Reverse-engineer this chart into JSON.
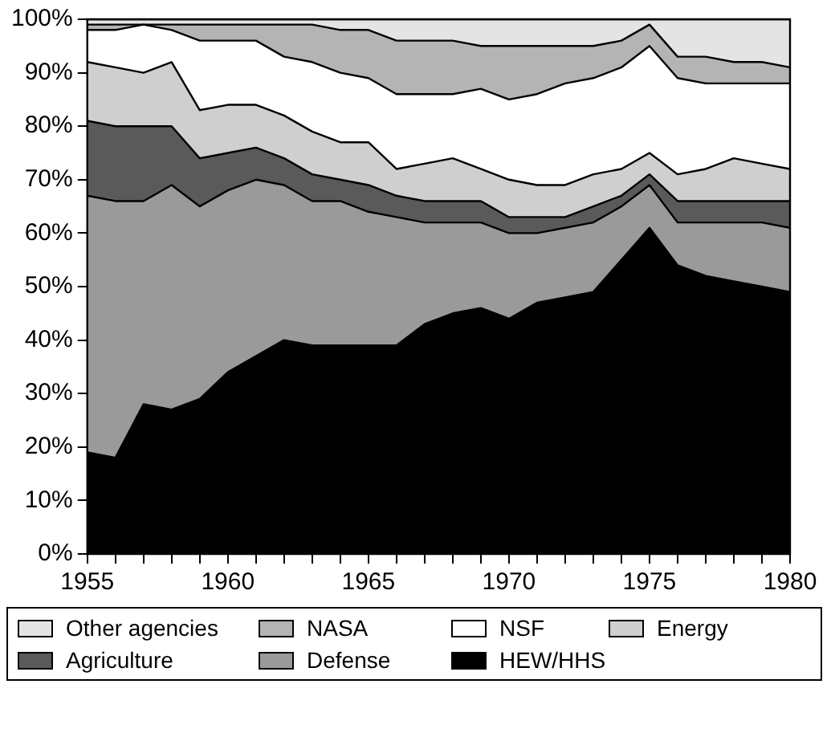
{
  "chart_data": {
    "type": "area",
    "stacked": true,
    "legend": "bottom",
    "marker": "none",
    "x": [
      1955,
      1956,
      1957,
      1958,
      1959,
      1960,
      1961,
      1962,
      1963,
      1964,
      1965,
      1966,
      1967,
      1968,
      1969,
      1970,
      1971,
      1972,
      1973,
      1974,
      1975,
      1976,
      1977,
      1978,
      1979,
      1980
    ],
    "xlim": [
      1955,
      1980
    ],
    "xticks": [
      1955,
      {
        "value": 1956,
        "label": null
      },
      {
        "value": 1957,
        "label": null
      },
      {
        "value": 1958,
        "label": null
      },
      {
        "value": 1959,
        "label": null
      },
      1960,
      {
        "value": 1961,
        "label": null
      },
      {
        "value": 1962,
        "label": null
      },
      {
        "value": 1963,
        "label": null
      },
      {
        "value": 1964,
        "label": null
      },
      1965,
      {
        "value": 1966,
        "label": null
      },
      {
        "value": 1967,
        "label": null
      },
      {
        "value": 1968,
        "label": null
      },
      {
        "value": 1969,
        "label": null
      },
      1970,
      {
        "value": 1971,
        "label": null
      },
      {
        "value": 1972,
        "label": null
      },
      {
        "value": 1973,
        "label": null
      },
      {
        "value": 1974,
        "label": null
      },
      1975,
      {
        "value": 1976,
        "label": null
      },
      {
        "value": 1977,
        "label": null
      },
      {
        "value": 1978,
        "label": null
      },
      {
        "value": 1979,
        "label": null
      },
      1980
    ],
    "ylim": [
      0,
      100
    ],
    "yticks": [
      {
        "value": 0,
        "label": "0%"
      },
      {
        "value": 10,
        "label": "10%"
      },
      {
        "value": 20,
        "label": "20%"
      },
      {
        "value": 30,
        "label": "30%"
      },
      {
        "value": 40,
        "label": "40%"
      },
      {
        "value": 50,
        "label": "50%"
      },
      {
        "value": 60,
        "label": "60%"
      },
      {
        "value": 70,
        "label": "70%"
      },
      {
        "value": 80,
        "label": "80%"
      },
      {
        "value": 90,
        "label": "90%"
      },
      {
        "value": 100,
        "label": "100%"
      }
    ],
    "series": [
      {
        "name": "HEW/HHS",
        "color": "#000000",
        "values": [
          19,
          18,
          28,
          27,
          29,
          34,
          37,
          40,
          39,
          39,
          39,
          39,
          43,
          45,
          46,
          44,
          47,
          48,
          49,
          55,
          61,
          54,
          52,
          51,
          50,
          49
        ]
      },
      {
        "name": "Defense",
        "color": "#9a9a9a",
        "values": [
          48,
          48,
          38,
          42,
          36,
          34,
          33,
          29,
          27,
          27,
          25,
          24,
          19,
          17,
          16,
          16,
          13,
          13,
          13,
          10,
          8,
          8,
          10,
          11,
          12,
          12
        ]
      },
      {
        "name": "Agriculture",
        "color": "#5a5a5a",
        "values": [
          14,
          14,
          14,
          11,
          9,
          7,
          6,
          5,
          5,
          4,
          5,
          4,
          4,
          4,
          4,
          3,
          3,
          2,
          3,
          2,
          2,
          4,
          4,
          4,
          4,
          5
        ]
      },
      {
        "name": "Energy",
        "color": "#cfcfcf",
        "values": [
          11,
          11,
          10,
          12,
          9,
          9,
          8,
          8,
          8,
          7,
          8,
          5,
          7,
          8,
          6,
          7,
          6,
          6,
          6,
          5,
          4,
          5,
          6,
          8,
          7,
          6
        ]
      },
      {
        "name": "NSF",
        "color": "#ffffff",
        "values": [
          6,
          7,
          9,
          6,
          13,
          12,
          12,
          11,
          13,
          13,
          12,
          14,
          13,
          12,
          15,
          15,
          17,
          19,
          18,
          19,
          20,
          18,
          16,
          14,
          15,
          16
        ]
      },
      {
        "name": "NASA",
        "color": "#b4b4b4",
        "values": [
          1,
          1,
          0,
          1,
          3,
          3,
          3,
          6,
          7,
          8,
          9,
          10,
          10,
          10,
          8,
          10,
          9,
          7,
          6,
          5,
          4,
          4,
          5,
          4,
          4,
          3
        ]
      },
      {
        "name": "Other agencies",
        "color": "#e4e4e4",
        "values": [
          1,
          1,
          1,
          1,
          1,
          1,
          1,
          1,
          1,
          2,
          2,
          4,
          4,
          4,
          5,
          5,
          5,
          5,
          5,
          4,
          1,
          7,
          7,
          8,
          8,
          9
        ]
      }
    ]
  }
}
